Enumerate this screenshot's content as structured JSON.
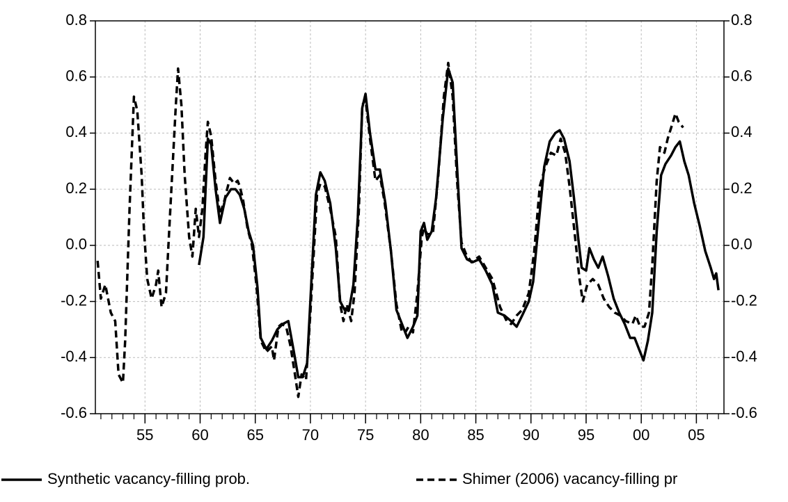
{
  "chart_data": {
    "type": "line",
    "xlim": [
      1950.5,
      2007.5
    ],
    "xticks": [
      {
        "value": 1955,
        "label": "55"
      },
      {
        "value": 1960,
        "label": "60"
      },
      {
        "value": 1965,
        "label": "65"
      },
      {
        "value": 1970,
        "label": "70"
      },
      {
        "value": 1975,
        "label": "75"
      },
      {
        "value": 1980,
        "label": "80"
      },
      {
        "value": 1985,
        "label": "85"
      },
      {
        "value": 1990,
        "label": "90"
      },
      {
        "value": 1995,
        "label": "95"
      },
      {
        "value": 2000,
        "label": "00"
      },
      {
        "value": 2005,
        "label": "05"
      }
    ],
    "ylim": [
      -0.6,
      0.8
    ],
    "yticks": [
      -0.6,
      -0.4,
      -0.2,
      {
        "value": 0,
        "label": "0.0"
      },
      0.2,
      0.4,
      0.6,
      0.8
    ],
    "y2lim": [
      -0.6,
      0.8
    ],
    "y2ticks": [
      -0.6,
      -0.4,
      -0.2,
      {
        "value": 0,
        "label": "0.0"
      },
      0.2,
      0.4,
      0.6,
      0.8
    ],
    "grid": true,
    "legend": "bottom",
    "series": [
      {
        "name": "Synthetic vacancy-filling prob.",
        "color": "#000000",
        "dash": false,
        "x": [
          1959.9,
          1960.3,
          1960.7,
          1961.0,
          1961.4,
          1961.8,
          1962.3,
          1962.8,
          1963.2,
          1963.6,
          1964.0,
          1964.4,
          1964.8,
          1965.2,
          1965.5,
          1966.0,
          1966.5,
          1967.0,
          1967.5,
          1968.0,
          1968.5,
          1968.9,
          1969.3,
          1969.7,
          1970.1,
          1970.5,
          1970.9,
          1971.3,
          1971.8,
          1972.3,
          1972.7,
          1973.1,
          1973.5,
          1973.9,
          1974.3,
          1974.7,
          1975.0,
          1975.4,
          1975.9,
          1976.3,
          1976.8,
          1977.3,
          1977.8,
          1978.3,
          1978.8,
          1979.3,
          1979.7,
          1980.0,
          1980.3,
          1980.6,
          1981.0,
          1981.4,
          1982.0,
          1982.5,
          1982.9,
          1983.3,
          1983.7,
          1984.2,
          1984.7,
          1985.3,
          1985.9,
          1986.5,
          1987.0,
          1987.6,
          1988.2,
          1988.7,
          1989.2,
          1989.8,
          1990.2,
          1990.7,
          1991.2,
          1991.7,
          1992.2,
          1992.6,
          1993.0,
          1993.5,
          1993.9,
          1994.3,
          1994.6,
          1995.0,
          1995.3,
          1995.7,
          1996.1,
          1996.5,
          1997.0,
          1997.5,
          1998.0,
          1998.5,
          1999.0,
          1999.4,
          1999.8,
          2000.2,
          2000.6,
          2001.0,
          2001.4,
          2001.8,
          2002.2,
          2002.7,
          2003.1,
          2003.5,
          2003.9,
          2004.3,
          2004.8,
          2005.3,
          2005.8,
          2006.3,
          2006.6,
          2006.8,
          2007.0
        ],
        "values": [
          -0.07,
          0.03,
          0.38,
          0.36,
          0.2,
          0.08,
          0.17,
          0.2,
          0.2,
          0.18,
          0.13,
          0.05,
          0.0,
          -0.15,
          -0.33,
          -0.37,
          -0.34,
          -0.3,
          -0.28,
          -0.27,
          -0.38,
          -0.47,
          -0.47,
          -0.42,
          -0.12,
          0.18,
          0.26,
          0.23,
          0.15,
          -0.01,
          -0.2,
          -0.23,
          -0.23,
          -0.14,
          0.1,
          0.49,
          0.54,
          0.4,
          0.27,
          0.27,
          0.15,
          -0.02,
          -0.23,
          -0.28,
          -0.33,
          -0.29,
          -0.25,
          0.05,
          0.08,
          0.02,
          0.05,
          0.17,
          0.45,
          0.63,
          0.58,
          0.28,
          -0.01,
          -0.05,
          -0.06,
          -0.05,
          -0.09,
          -0.14,
          -0.24,
          -0.25,
          -0.27,
          -0.29,
          -0.25,
          -0.2,
          -0.13,
          0.08,
          0.28,
          0.37,
          0.4,
          0.41,
          0.38,
          0.3,
          0.17,
          0.02,
          -0.08,
          -0.09,
          -0.01,
          -0.05,
          -0.08,
          -0.04,
          -0.11,
          -0.19,
          -0.24,
          -0.28,
          -0.33,
          -0.33,
          -0.37,
          -0.41,
          -0.34,
          -0.24,
          0.05,
          0.25,
          0.29,
          0.32,
          0.35,
          0.37,
          0.3,
          0.25,
          0.15,
          0.07,
          -0.02,
          -0.08,
          -0.12,
          -0.1,
          -0.16
        ]
      },
      {
        "name": "Shimer (2006) vacancy-filling pr",
        "color": "#000000",
        "dash": true,
        "x": [
          1950.7,
          1951.0,
          1951.4,
          1951.9,
          1952.3,
          1952.6,
          1953.0,
          1953.2,
          1953.6,
          1954.0,
          1954.3,
          1954.7,
          1954.9,
          1955.2,
          1955.6,
          1956.0,
          1956.2,
          1956.5,
          1956.9,
          1957.3,
          1957.8,
          1958.0,
          1958.3,
          1958.6,
          1959.0,
          1959.3,
          1959.6,
          1959.9,
          1960.2,
          1960.5,
          1960.7,
          1961.0,
          1961.4,
          1961.8,
          1962.2,
          1962.7,
          1963.1,
          1963.4,
          1963.6,
          1963.9,
          1964.3,
          1964.7,
          1965.1,
          1965.5,
          1966.0,
          1966.5,
          1966.7,
          1967.1,
          1967.4,
          1967.8,
          1968.2,
          1968.6,
          1968.9,
          1969.2,
          1969.6,
          1970.0,
          1970.6,
          1970.9,
          1971.3,
          1971.8,
          1972.3,
          1972.7,
          1973.0,
          1973.3,
          1973.7,
          1974.0,
          1974.4,
          1974.7,
          1975.0,
          1975.4,
          1975.9,
          1976.3,
          1976.7,
          1977.3,
          1977.8,
          1978.3,
          1978.6,
          1978.9,
          1979.3,
          1979.7,
          1980.1,
          1980.3,
          1980.6,
          1981.1,
          1981.6,
          1982.1,
          1982.5,
          1982.9,
          1983.3,
          1983.7,
          1984.1,
          1984.6,
          1985.3,
          1985.9,
          1986.5,
          1987.2,
          1987.8,
          1988.2,
          1988.7,
          1989.2,
          1989.8,
          1990.3,
          1990.8,
          1991.3,
          1991.8,
          1992.3,
          1992.7,
          1993.1,
          1993.5,
          1994.0,
          1994.4,
          1994.7,
          1995.1,
          1995.6,
          1996.1,
          1996.6,
          1997.1,
          1997.6,
          1998.1,
          1998.6,
          1999.2,
          1999.5,
          1999.9,
          2000.3,
          2000.7,
          2001.0,
          2001.4,
          2001.7,
          2002.1,
          2002.4,
          2002.8,
          2003.1,
          2003.4,
          2003.8
        ],
        "values": [
          -0.055,
          -0.19,
          -0.14,
          -0.24,
          -0.27,
          -0.46,
          -0.49,
          -0.34,
          0.13,
          0.53,
          0.48,
          0.25,
          0.06,
          -0.12,
          -0.19,
          -0.14,
          -0.09,
          -0.22,
          -0.17,
          0.13,
          0.5,
          0.63,
          0.5,
          0.25,
          0.03,
          -0.04,
          0.13,
          0.03,
          0.13,
          0.33,
          0.44,
          0.39,
          0.23,
          0.11,
          0.16,
          0.24,
          0.22,
          0.23,
          0.21,
          0.16,
          0.06,
          0.0,
          -0.14,
          -0.34,
          -0.38,
          -0.36,
          -0.41,
          -0.29,
          -0.28,
          -0.29,
          -0.36,
          -0.46,
          -0.54,
          -0.46,
          -0.48,
          -0.24,
          0.18,
          0.22,
          0.21,
          0.13,
          0.03,
          -0.21,
          -0.27,
          -0.21,
          -0.27,
          -0.17,
          0.13,
          0.5,
          0.52,
          0.38,
          0.23,
          0.25,
          0.16,
          -0.02,
          -0.21,
          -0.31,
          -0.31,
          -0.29,
          -0.31,
          -0.17,
          0.03,
          0.06,
          0.04,
          0.04,
          0.25,
          0.53,
          0.65,
          0.53,
          0.23,
          0.01,
          -0.03,
          -0.06,
          -0.04,
          -0.08,
          -0.12,
          -0.22,
          -0.27,
          -0.28,
          -0.25,
          -0.23,
          -0.17,
          -0.02,
          0.21,
          0.28,
          0.33,
          0.32,
          0.38,
          0.33,
          0.21,
          0.03,
          -0.12,
          -0.2,
          -0.14,
          -0.12,
          -0.14,
          -0.19,
          -0.22,
          -0.24,
          -0.25,
          -0.27,
          -0.28,
          -0.25,
          -0.29,
          -0.29,
          -0.24,
          -0.07,
          0.23,
          0.35,
          0.33,
          0.38,
          0.43,
          0.47,
          0.44,
          0.42
        ]
      }
    ]
  }
}
